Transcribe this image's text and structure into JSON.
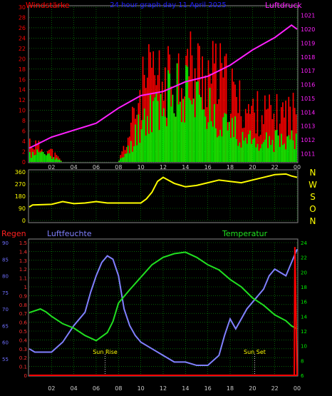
{
  "colors": {
    "background": "#000000",
    "grid": "#0a9a0a",
    "axis_text": "#cccccc",
    "wind_bar": "#ff0000",
    "gust_bar": "#00ff00",
    "pressure": "#ff20ff",
    "direction": "#ffff00",
    "humidity": "#8080ff",
    "temperature": "#20e020",
    "rain": "#ff0000",
    "rain_axis": "#ff3030",
    "humidity_axis": "#7070ff",
    "temperature_axis": "#00ee00",
    "title": "#2020ff",
    "sun_label": "#ffff00"
  },
  "chart_data": [
    {
      "type": "bar",
      "id": "wind",
      "title": "24 hour graph day 11 April 2025",
      "ylabel_left": "Windstärke",
      "ylabel_right": "Luftdruck",
      "x_ticks": [
        "02",
        "04",
        "06",
        "08",
        "10",
        "12",
        "14",
        "16",
        "18",
        "20",
        "22",
        "00"
      ],
      "ylim_left": [
        0,
        30
      ],
      "yticks_left": [
        "0",
        "2",
        "4",
        "6",
        "8",
        "10",
        "12",
        "14",
        "16",
        "18",
        "20",
        "22",
        "24",
        "26",
        "28",
        "30"
      ],
      "ylim_right": [
        1010.4,
        1021.6
      ],
      "yticks_right": [
        "1011",
        "1012",
        "1013",
        "1014",
        "1015",
        "1016",
        "1017",
        "1018",
        "1019",
        "1020",
        "1021"
      ],
      "wind_hourly_max": [
        6,
        4,
        3,
        0,
        0,
        0,
        0,
        0,
        0,
        8,
        20,
        24,
        22,
        24,
        28,
        26,
        25,
        24,
        20,
        16,
        14,
        14,
        13,
        14
      ],
      "gust_hourly_max": [
        2,
        3,
        2,
        0,
        0,
        0,
        0,
        0,
        0,
        4,
        12,
        16,
        18,
        20,
        22,
        20,
        18,
        14,
        10,
        8,
        6,
        6,
        6,
        8
      ],
      "pressure_x": [
        0,
        2,
        4,
        6,
        8,
        10,
        12,
        14,
        16,
        18,
        20,
        22,
        23.5,
        24
      ],
      "pressure_y": [
        1011.4,
        1012.2,
        1012.7,
        1013.2,
        1014.3,
        1015.2,
        1015.5,
        1016.2,
        1016.6,
        1017.4,
        1018.5,
        1019.4,
        1020.3,
        1020.0
      ],
      "grid": true
    },
    {
      "type": "line",
      "id": "direction",
      "ylim": [
        0,
        360
      ],
      "yticks": [
        "0",
        "90",
        "180",
        "270",
        "360"
      ],
      "right_labels": [
        "N",
        "W",
        "S",
        "O",
        "N"
      ],
      "x": [
        0,
        0.3,
        2,
        3,
        4,
        5,
        6,
        7,
        8,
        9,
        10,
        10.5,
        11,
        11.5,
        12,
        13,
        14,
        15,
        16,
        17,
        18,
        19,
        20,
        21,
        22,
        23,
        23.5,
        24
      ],
      "y": [
        100,
        115,
        120,
        140,
        125,
        130,
        140,
        130,
        130,
        130,
        130,
        160,
        210,
        290,
        320,
        275,
        250,
        260,
        280,
        300,
        290,
        280,
        300,
        320,
        340,
        345,
        330,
        320
      ],
      "grid": true
    },
    {
      "type": "line",
      "id": "weather",
      "legend": [
        "Regen",
        "Luftfeuchte",
        "Temperatur"
      ],
      "x_ticks": [
        "02",
        "04",
        "06",
        "08",
        "10",
        "12",
        "14",
        "16",
        "18",
        "20",
        "22",
        "00"
      ],
      "rain_ylim": [
        0,
        1.5
      ],
      "rain_yticks": [
        "0",
        "0.1",
        "0.2",
        "0.3",
        "0.4",
        "0.5",
        "0.6",
        "0.7",
        "0.8",
        "0.9",
        "1",
        "1.1",
        "1.2",
        "1.3",
        "1.4",
        "1.5"
      ],
      "humidity_ylim": [
        50,
        90
      ],
      "humidity_yticks": [
        "55",
        "60",
        "65",
        "70",
        "75",
        "80",
        "85",
        "90"
      ],
      "temperature_ylim": [
        6,
        24
      ],
      "temperature_yticks": [
        "6",
        "8",
        "10",
        "12",
        "14",
        "16",
        "18",
        "20",
        "22",
        "24"
      ],
      "humidity_x": [
        0,
        0.5,
        2,
        3,
        4,
        5,
        5.5,
        6,
        6.5,
        7,
        7.5,
        8,
        8.5,
        9,
        9.5,
        10,
        11,
        12,
        13,
        14,
        15,
        16,
        17,
        17.5,
        18,
        18.5,
        19,
        19.5,
        20,
        21,
        21.5,
        22,
        22.5,
        23,
        23.5,
        24
      ],
      "humidity_y": [
        58,
        57,
        57,
        60,
        65,
        69,
        75,
        80,
        84,
        86,
        85,
        80,
        70,
        65,
        62,
        60,
        58,
        56,
        54,
        54,
        53,
        53,
        56,
        62,
        67,
        64,
        67,
        70,
        72,
        76,
        80,
        82,
        81,
        80,
        84,
        88
      ],
      "temperature_x": [
        0,
        1,
        1.5,
        2,
        3,
        4,
        5,
        6,
        7,
        7.5,
        8,
        9,
        10,
        11,
        12,
        13,
        14,
        15,
        16,
        17,
        18,
        19,
        20,
        21,
        22,
        23,
        23.5,
        24
      ],
      "temperature_y": [
        14.5,
        15.0,
        14.6,
        14.0,
        13.0,
        12.4,
        11.4,
        10.7,
        11.8,
        13.3,
        15.8,
        17.6,
        19.3,
        21.0,
        22.0,
        22.5,
        22.7,
        22.0,
        21.0,
        20.3,
        19.0,
        18.0,
        16.5,
        15.5,
        14.2,
        13.4,
        12.7,
        12.3
      ],
      "rain_x": [
        0,
        23.75,
        23.8,
        24
      ],
      "rain_y": [
        0,
        0,
        1.45,
        0
      ],
      "annotations": [
        {
          "label": "Sun Rise",
          "x": 6.8
        },
        {
          "label": "Sun Set",
          "x": 20.2
        }
      ],
      "grid": true
    }
  ]
}
